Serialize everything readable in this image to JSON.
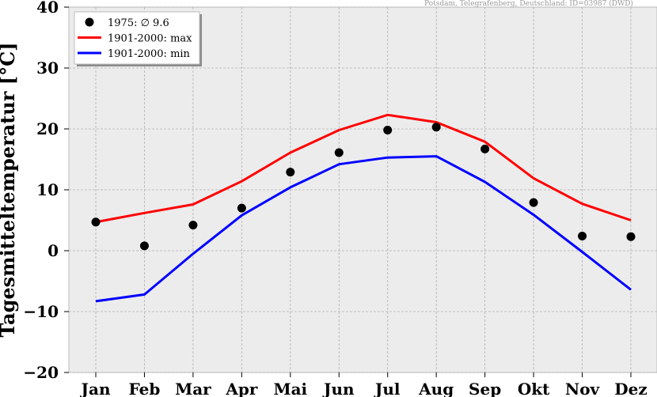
{
  "source_note": "Potsdam, Telegrafenberg, Deutschland: ID=03987 (DWD)",
  "chart_data": {
    "type": "line",
    "ylabel": "Tagesmitteltemperatur [°C]",
    "xlabel": "",
    "ylim": [
      -20,
      40
    ],
    "yticks": [
      -20,
      -10,
      0,
      10,
      20,
      30,
      40
    ],
    "grid": true,
    "legend_position": "top-left",
    "categories": [
      "Jan",
      "Feb",
      "Mar",
      "Apr",
      "Mai",
      "Jun",
      "Jul",
      "Aug",
      "Sep",
      "Okt",
      "Nov",
      "Dez"
    ],
    "series": [
      {
        "name": "1975: ∅ 9.6",
        "kind": "scatter",
        "color": "#000000",
        "values": [
          4.7,
          0.8,
          4.2,
          7.0,
          12.9,
          16.1,
          19.8,
          20.3,
          16.7,
          7.9,
          2.4,
          2.3
        ]
      },
      {
        "name": "1901-2000: max",
        "kind": "line",
        "color": "#ff0000",
        "values": [
          4.7,
          6.2,
          7.6,
          11.4,
          16.1,
          19.8,
          22.3,
          21.1,
          17.9,
          11.9,
          7.7,
          5.0
        ]
      },
      {
        "name": "1901-2000: min",
        "kind": "line",
        "color": "#0000ff",
        "values": [
          -8.3,
          -7.2,
          -0.5,
          5.8,
          10.4,
          14.2,
          15.3,
          15.5,
          11.3,
          5.9,
          -0.2,
          -6.4
        ]
      }
    ]
  },
  "colors": {
    "plot_bg": "#ececec",
    "grid": "#b0b0b0",
    "axis": "#bcbcbc"
  }
}
